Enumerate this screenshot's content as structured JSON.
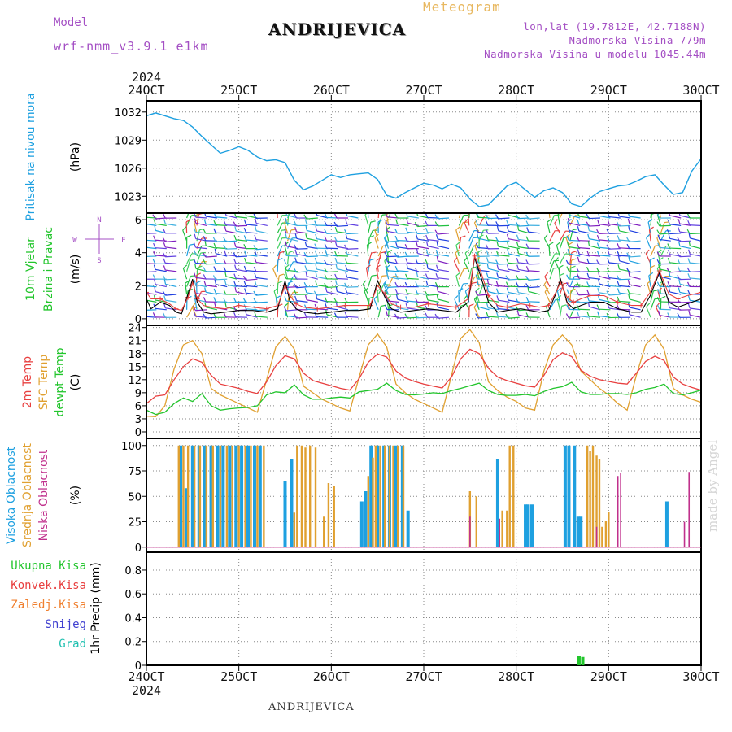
{
  "header": {
    "model_label": "Model",
    "model_value": "wrf-nmm_v3.9.1 e1km",
    "meteogram_label": "Meteogram",
    "station": "ANDRIJEVICA",
    "lonlat": "lon,lat (19.7812E, 42.7188N)",
    "altitude": "Nadmorska Visina 779m",
    "model_altitude": "Nadmorska Visina u modelu 1045.44m"
  },
  "footer": {
    "station": "ANDRIJEVICA",
    "credit": "made by Angel"
  },
  "x_axis": {
    "year": "2024",
    "ticks": [
      "24OCT",
      "25OCT",
      "26OCT",
      "27OCT",
      "28OCT",
      "29OCT",
      "30OCT"
    ]
  },
  "colors": {
    "pressure": "#1ea0e0",
    "wind_legend": "#22c52c",
    "temp2m": "#e84040",
    "sfc": "#e0a030",
    "dewpt": "#22c52c",
    "high_cloud": "#1ea0e0",
    "mid_cloud": "#e0a030",
    "low_cloud": "#c0308c",
    "total_precip": "#22c52c",
    "convective": "#e84040",
    "frozen": "#f08030",
    "snow": "#4040d0",
    "hail": "#20c0b0",
    "compass": "#a44fc4"
  },
  "chart_data": [
    {
      "id": "pressure",
      "type": "line",
      "ylabels": [
        "Pritisak na nivou mora",
        "(hPa)"
      ],
      "yticks": [
        1023,
        1026,
        1029,
        1032
      ],
      "ylim": [
        1021.2,
        1033.2
      ],
      "x": [
        0,
        0.1,
        0.3,
        0.4,
        0.5,
        0.6,
        0.7,
        0.8,
        0.9,
        1.0,
        1.1,
        1.2,
        1.3,
        1.4,
        1.5,
        1.6,
        1.7,
        1.8,
        1.9,
        2.0,
        2.1,
        2.2,
        2.3,
        2.4,
        2.5,
        2.6,
        2.7,
        2.8,
        2.9,
        3.0,
        3.1,
        3.2,
        3.3,
        3.4,
        3.5,
        3.6,
        3.7,
        3.8,
        3.9,
        4.0,
        4.1,
        4.2,
        4.3,
        4.4,
        4.5,
        4.6,
        4.7,
        4.8,
        4.9,
        5.0,
        5.1,
        5.2,
        5.3,
        5.4,
        5.5,
        5.6,
        5.7,
        5.8,
        5.9,
        6.0
      ],
      "series": [
        {
          "values": [
            1031.6,
            1031.9,
            1031.3,
            1031.1,
            1030.4,
            1029.4,
            1028.5,
            1027.6,
            1027.9,
            1028.3,
            1027.9,
            1027.2,
            1026.8,
            1026.9,
            1026.6,
            1024.7,
            1023.7,
            1024.1,
            1024.7,
            1025.3,
            1025.0,
            1025.3,
            1025.4,
            1025.5,
            1024.8,
            1023.1,
            1022.8,
            1023.4,
            1023.9,
            1024.4,
            1024.2,
            1023.8,
            1024.3,
            1023.9,
            1022.7,
            1021.9,
            1022.1,
            1023.1,
            1024.1,
            1024.5,
            1023.7,
            1022.9,
            1023.6,
            1023.9,
            1023.4,
            1022.2,
            1021.9,
            1022.8,
            1023.5,
            1023.8,
            1024.1,
            1024.2,
            1024.6,
            1025.1,
            1025.3,
            1024.2,
            1023.2,
            1023.4,
            1025.7,
            1027.0
          ]
        }
      ]
    },
    {
      "id": "wind",
      "type": "line",
      "ylabels": [
        "10m Vjetar",
        "Brzina i Pravac",
        "(m/s)"
      ],
      "compass": {
        "n": "N",
        "e": "E",
        "w": "W",
        "s": "S"
      },
      "yticks": [
        0,
        2,
        4,
        6
      ],
      "ylim": [
        -0.4,
        6.4
      ],
      "x": [
        0,
        0.05,
        0.15,
        0.25,
        0.32,
        0.38,
        0.45,
        0.5,
        0.55,
        0.62,
        0.7,
        0.85,
        1.0,
        1.15,
        1.3,
        1.42,
        1.5,
        1.55,
        1.62,
        1.7,
        1.85,
        2.0,
        2.15,
        2.3,
        2.42,
        2.5,
        2.58,
        2.65,
        2.75,
        2.9,
        3.05,
        3.2,
        3.35,
        3.48,
        3.55,
        3.62,
        3.7,
        3.8,
        3.9,
        4.05,
        4.15,
        4.25,
        4.35,
        4.42,
        4.48,
        4.55,
        4.62,
        4.7,
        4.8,
        4.95,
        5.1,
        5.25,
        5.35,
        5.45,
        5.55,
        5.65,
        5.75,
        5.85,
        6.0
      ],
      "series": [
        {
          "values": [
            1.2,
            0.6,
            1.0,
            0.8,
            0.4,
            0.3,
            1.5,
            2.4,
            1.0,
            0.4,
            0.3,
            0.4,
            0.5,
            0.5,
            0.4,
            0.6,
            2.3,
            1.1,
            0.6,
            0.4,
            0.3,
            0.4,
            0.5,
            0.5,
            0.6,
            2.3,
            1.3,
            0.6,
            0.4,
            0.5,
            0.6,
            0.5,
            0.4,
            1.0,
            3.7,
            2.5,
            1.0,
            0.4,
            0.5,
            0.6,
            0.5,
            0.4,
            0.5,
            1.4,
            2.4,
            1.0,
            0.6,
            0.8,
            1.0,
            1.0,
            0.6,
            0.4,
            0.4,
            1.4,
            2.8,
            1.0,
            0.7,
            0.9,
            1.2
          ]
        },
        {
          "values": [
            1.6,
            1.2,
            1.2,
            0.9,
            0.6,
            0.5,
            1.3,
            2.2,
            1.2,
            0.8,
            0.7,
            0.6,
            0.8,
            0.7,
            0.6,
            0.8,
            2.0,
            1.4,
            0.9,
            0.7,
            0.6,
            0.7,
            0.8,
            0.8,
            0.8,
            2.0,
            1.5,
            0.9,
            0.7,
            0.7,
            0.9,
            0.8,
            0.7,
            1.2,
            3.8,
            2.8,
            1.4,
            0.8,
            0.7,
            0.9,
            0.8,
            0.7,
            0.8,
            1.5,
            2.2,
            1.3,
            1.0,
            1.2,
            1.4,
            1.4,
            1.0,
            0.8,
            0.8,
            1.6,
            2.9,
            1.5,
            1.2,
            1.4,
            1.6
          ]
        }
      ]
    },
    {
      "id": "temperature",
      "type": "line",
      "ylabels": [
        "2m Temp",
        "SFC Temp",
        "dewpt Temp",
        "(C)"
      ],
      "yticks": [
        0,
        3,
        6,
        9,
        12,
        15,
        18,
        21,
        24
      ],
      "ylim": [
        -1.5,
        24.5
      ],
      "x": [
        0,
        0.1,
        0.2,
        0.3,
        0.4,
        0.5,
        0.6,
        0.7,
        0.8,
        0.9,
        1.0,
        1.1,
        1.2,
        1.3,
        1.4,
        1.5,
        1.6,
        1.7,
        1.8,
        1.9,
        2.0,
        2.1,
        2.2,
        2.3,
        2.4,
        2.5,
        2.6,
        2.7,
        2.8,
        2.9,
        3.0,
        3.1,
        3.2,
        3.3,
        3.4,
        3.5,
        3.6,
        3.7,
        3.8,
        3.9,
        4.0,
        4.1,
        4.2,
        4.3,
        4.4,
        4.5,
        4.6,
        4.7,
        4.8,
        4.9,
        5.0,
        5.1,
        5.2,
        5.3,
        5.4,
        5.5,
        5.6,
        5.7,
        5.8,
        5.9,
        6.0
      ],
      "series": [
        {
          "name": "2m Temp",
          "values": [
            6.5,
            8.2,
            8.5,
            12.0,
            15.0,
            16.8,
            16.0,
            13.0,
            11.0,
            10.5,
            10.0,
            9.3,
            8.8,
            11.5,
            15.2,
            17.5,
            16.8,
            13.5,
            11.8,
            11.2,
            10.6,
            10.0,
            9.6,
            12.2,
            16.0,
            17.9,
            17.2,
            14.0,
            12.4,
            11.6,
            11.0,
            10.5,
            10.1,
            12.6,
            16.8,
            19.0,
            18.0,
            14.6,
            12.6,
            11.8,
            11.2,
            10.6,
            10.3,
            13.0,
            16.6,
            18.2,
            17.3,
            14.2,
            12.8,
            12.0,
            11.6,
            11.2,
            11.0,
            13.5,
            16.2,
            17.4,
            16.4,
            12.6,
            11.0,
            10.2,
            9.6
          ]
        },
        {
          "name": "SFC Temp",
          "values": [
            3.6,
            3.5,
            6.0,
            14.5,
            20.0,
            21.0,
            18.0,
            10.0,
            8.5,
            7.5,
            6.5,
            5.5,
            4.5,
            12.0,
            19.5,
            22.0,
            19.0,
            10.5,
            9.0,
            7.5,
            6.5,
            5.5,
            4.8,
            12.5,
            20.0,
            22.5,
            19.5,
            11.0,
            9.0,
            7.5,
            6.5,
            5.5,
            4.5,
            13.0,
            21.5,
            23.5,
            20.5,
            11.5,
            9.5,
            8.0,
            7.0,
            5.5,
            5.0,
            14.0,
            20.0,
            22.3,
            20.0,
            14.0,
            12.0,
            10.0,
            8.5,
            6.5,
            5.0,
            13.0,
            20.0,
            22.3,
            19.0,
            10.0,
            8.5,
            7.5,
            6.8
          ]
        },
        {
          "name": "dewpt Temp",
          "values": [
            5.0,
            4.0,
            4.5,
            6.5,
            7.8,
            7.0,
            8.8,
            6.0,
            5.0,
            5.3,
            5.5,
            5.6,
            6.0,
            8.5,
            9.2,
            9.0,
            10.8,
            8.5,
            7.5,
            7.5,
            7.8,
            8.0,
            7.8,
            9.2,
            9.5,
            9.8,
            11.2,
            9.5,
            8.6,
            8.5,
            8.7,
            9.0,
            8.8,
            9.5,
            10.0,
            10.6,
            11.2,
            9.5,
            8.6,
            8.4,
            8.4,
            8.6,
            8.3,
            9.3,
            10.0,
            10.4,
            11.4,
            9.2,
            8.6,
            8.6,
            8.8,
            8.8,
            8.6,
            9.0,
            9.8,
            10.2,
            11.0,
            8.8,
            8.5,
            9.0,
            9.6
          ]
        }
      ]
    },
    {
      "id": "clouds",
      "type": "bar",
      "ylabels": [
        "Visoka Oblacnost",
        "Srednja Oblacnost",
        "Niska Oblacnost",
        "(%)"
      ],
      "yticks": [
        0,
        25,
        50,
        75,
        100
      ],
      "ylim": [
        -5,
        107
      ],
      "series": [
        {
          "name": "Visoka Oblacnost",
          "x": [
            0.37,
            0.43,
            0.5,
            0.57,
            0.63,
            0.7,
            0.77,
            0.83,
            0.9,
            0.97,
            1.03,
            1.1,
            1.17,
            1.23,
            1.5,
            1.57,
            2.33,
            2.37,
            2.43,
            2.5,
            2.57,
            2.63,
            2.7,
            2.77,
            2.83,
            3.8,
            4.1,
            4.13,
            4.17,
            4.53,
            4.57,
            4.63,
            4.67,
            4.7,
            5.63
          ],
          "values": [
            100,
            58,
            100,
            100,
            100,
            100,
            100,
            100,
            100,
            100,
            100,
            100,
            100,
            100,
            65,
            87,
            45,
            55,
            100,
            100,
            100,
            100,
            100,
            100,
            36,
            87,
            42,
            42,
            42,
            100,
            100,
            100,
            30,
            30,
            45
          ]
        },
        {
          "name": "Srednja Oblacnost",
          "x": [
            0.35,
            0.4,
            0.45,
            0.52,
            0.58,
            0.65,
            0.72,
            0.8,
            0.87,
            0.93,
            1.0,
            1.07,
            1.13,
            1.2,
            1.27,
            1.6,
            1.63,
            1.68,
            1.72,
            1.77,
            1.83,
            1.92,
            1.97,
            2.03,
            2.4,
            2.45,
            2.48,
            2.53,
            2.58,
            2.63,
            2.67,
            2.72,
            2.78,
            3.5,
            3.57,
            3.85,
            3.9,
            3.93,
            3.97,
            4.77,
            4.8,
            4.83,
            4.87,
            4.9,
            4.93,
            4.97,
            5.0
          ],
          "values": [
            100,
            100,
            100,
            100,
            100,
            100,
            100,
            100,
            100,
            100,
            100,
            100,
            100,
            100,
            100,
            34,
            100,
            100,
            98,
            100,
            98,
            30,
            63,
            60,
            70,
            88,
            100,
            100,
            100,
            100,
            100,
            100,
            100,
            55,
            50,
            36,
            36,
            100,
            100,
            100,
            95,
            100,
            90,
            87,
            20,
            26,
            35
          ]
        },
        {
          "name": "Niska Oblacnost",
          "x": [
            3.5,
            3.82,
            4.87,
            5.1,
            5.13,
            5.82,
            5.87
          ],
          "values": [
            30,
            28,
            20,
            70,
            73,
            25,
            74
          ]
        }
      ]
    },
    {
      "id": "precip",
      "type": "bar",
      "ylabels": [
        "1hr Precip (mm)"
      ],
      "legend": [
        "Ukupna Kisa",
        "Konvek.Kisa",
        "Zaledj.Kisa",
        "Snijeg",
        "Grad"
      ],
      "yticks": [
        0,
        0.2,
        0.4,
        0.6,
        0.8
      ],
      "ylim": [
        0,
        0.95
      ],
      "series": [
        {
          "name": "Ukupna Kisa",
          "x": [
            4.68,
            4.72
          ],
          "values": [
            0.08,
            0.07
          ]
        }
      ]
    }
  ]
}
